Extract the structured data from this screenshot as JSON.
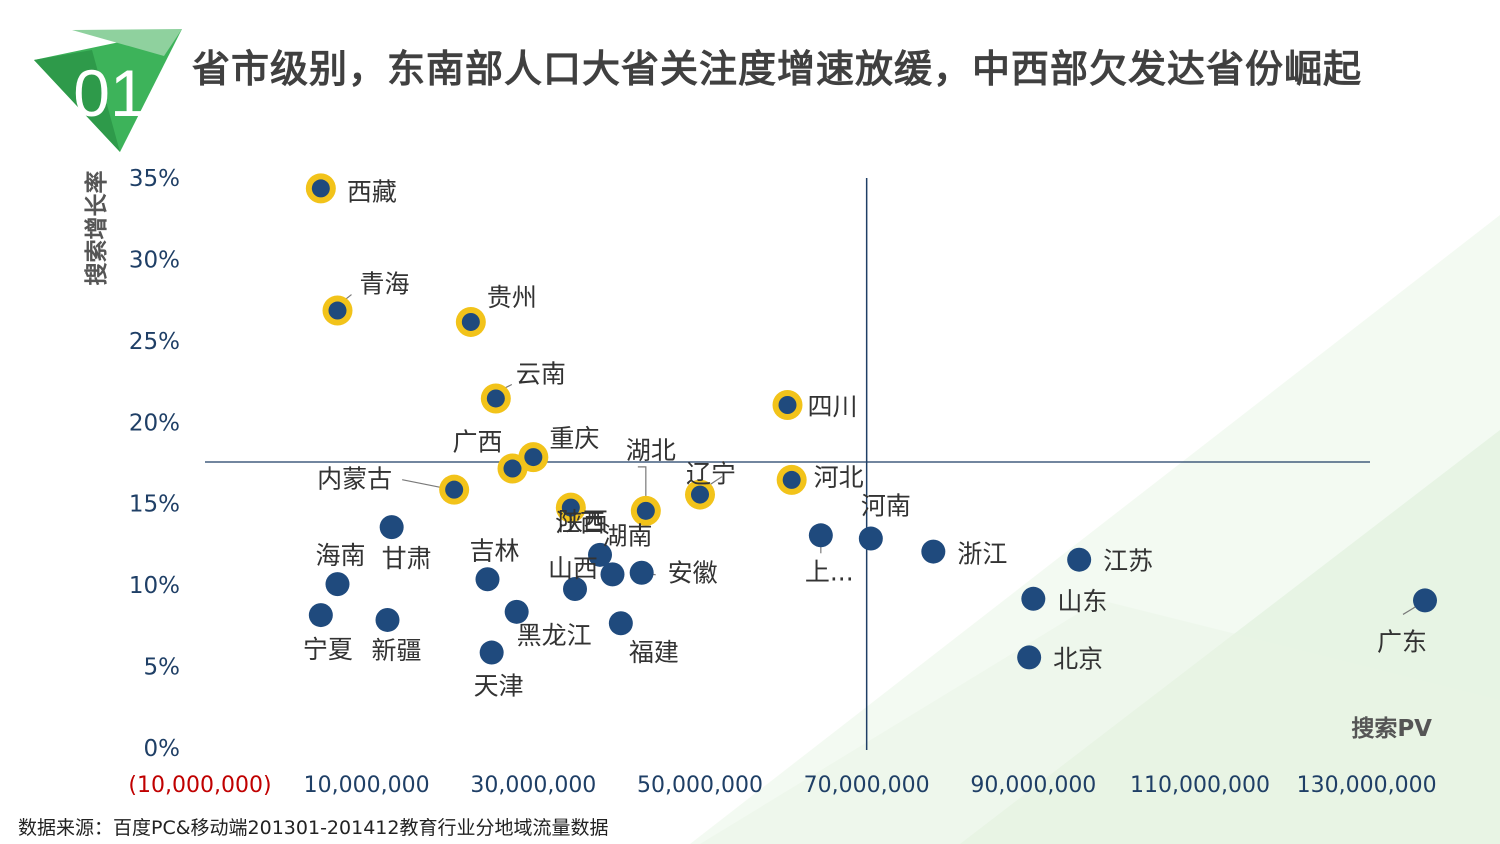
{
  "header": {
    "number": "01",
    "title": "省市级别，东南部人口大省关注度增速放缓，中西部欠发达省份崛起"
  },
  "footer": {
    "source": "数据来源：百度PC&移动端201301-201412教育行业分地域流量数据"
  },
  "colors": {
    "dot": "#1f4a7d",
    "highlight_ring": "#f2c31a",
    "badge_green": "#3db35a",
    "badge_dark": "#1f7a3c",
    "negative_tick": "#c00000"
  },
  "chart_data": {
    "type": "scatter",
    "title": "",
    "xlabel": "搜索PV",
    "ylabel": "搜索增长率",
    "xlim": [
      -10000000,
      140000000
    ],
    "ylim": [
      0,
      0.35
    ],
    "x_ticks": [
      -10000000,
      10000000,
      30000000,
      50000000,
      70000000,
      90000000,
      110000000,
      130000000
    ],
    "x_tick_labels": [
      "(10,000,000)",
      "10,000,000",
      "30,000,000",
      "50,000,000",
      "70,000,000",
      "90,000,000",
      "110,000,000",
      "130,000,000"
    ],
    "y_ticks": [
      0,
      0.05,
      0.1,
      0.15,
      0.2,
      0.25,
      0.3,
      0.35
    ],
    "y_tick_labels": [
      "0%",
      "5%",
      "10%",
      "15%",
      "20%",
      "25%",
      "30%",
      "35%"
    ],
    "reference_lines": {
      "x": 70000000,
      "y": 0.175
    },
    "points": [
      {
        "name": "西藏",
        "x": 4500000,
        "y": 0.343,
        "highlight": true
      },
      {
        "name": "青海",
        "x": 6500000,
        "y": 0.268,
        "highlight": true
      },
      {
        "name": "贵州",
        "x": 22500000,
        "y": 0.261,
        "highlight": true
      },
      {
        "name": "云南",
        "x": 25500000,
        "y": 0.214,
        "highlight": true
      },
      {
        "name": "四川",
        "x": 60500000,
        "y": 0.21,
        "highlight": true
      },
      {
        "name": "广西",
        "x": 27500000,
        "y": 0.171,
        "highlight": true
      },
      {
        "name": "重庆",
        "x": 30000000,
        "y": 0.178,
        "highlight": true
      },
      {
        "name": "内蒙古",
        "x": 20500000,
        "y": 0.158,
        "highlight": true
      },
      {
        "name": "江西",
        "x": 34500000,
        "y": 0.147,
        "highlight": true
      },
      {
        "name": "湖北",
        "x": 43500000,
        "y": 0.145,
        "highlight": true
      },
      {
        "name": "辽宁",
        "x": 50000000,
        "y": 0.155,
        "highlight": true
      },
      {
        "name": "河北",
        "x": 61000000,
        "y": 0.164,
        "highlight": true
      },
      {
        "name": "甘肃",
        "x": 13000000,
        "y": 0.135,
        "highlight": false
      },
      {
        "name": "海南",
        "x": 6500000,
        "y": 0.1,
        "highlight": false
      },
      {
        "name": "吉林",
        "x": 24500000,
        "y": 0.103,
        "highlight": false
      },
      {
        "name": "陕西",
        "x": 38000000,
        "y": 0.118,
        "highlight": false
      },
      {
        "name": "山西",
        "x": 35000000,
        "y": 0.097,
        "highlight": false
      },
      {
        "name": "湖南",
        "x": 39500000,
        "y": 0.106,
        "highlight": false
      },
      {
        "name": "安徽",
        "x": 43000000,
        "y": 0.107,
        "highlight": false
      },
      {
        "name": "宁夏",
        "x": 4500000,
        "y": 0.081,
        "highlight": false
      },
      {
        "name": "新疆",
        "x": 12500000,
        "y": 0.078,
        "highlight": false
      },
      {
        "name": "黑龙江",
        "x": 28000000,
        "y": 0.083,
        "highlight": false
      },
      {
        "name": "福建",
        "x": 40500000,
        "y": 0.076,
        "highlight": false
      },
      {
        "name": "天津",
        "x": 25000000,
        "y": 0.058,
        "highlight": false
      },
      {
        "name": "上...",
        "x": 64500000,
        "y": 0.13,
        "highlight": false
      },
      {
        "name": "河南",
        "x": 70500000,
        "y": 0.128,
        "highlight": false
      },
      {
        "name": "浙江",
        "x": 78000000,
        "y": 0.12,
        "highlight": false
      },
      {
        "name": "江苏",
        "x": 95500000,
        "y": 0.115,
        "highlight": false
      },
      {
        "name": "山东",
        "x": 90000000,
        "y": 0.091,
        "highlight": false
      },
      {
        "name": "北京",
        "x": 89500000,
        "y": 0.055,
        "highlight": false
      },
      {
        "name": "广东",
        "x": 137000000,
        "y": 0.09,
        "highlight": false
      }
    ]
  }
}
